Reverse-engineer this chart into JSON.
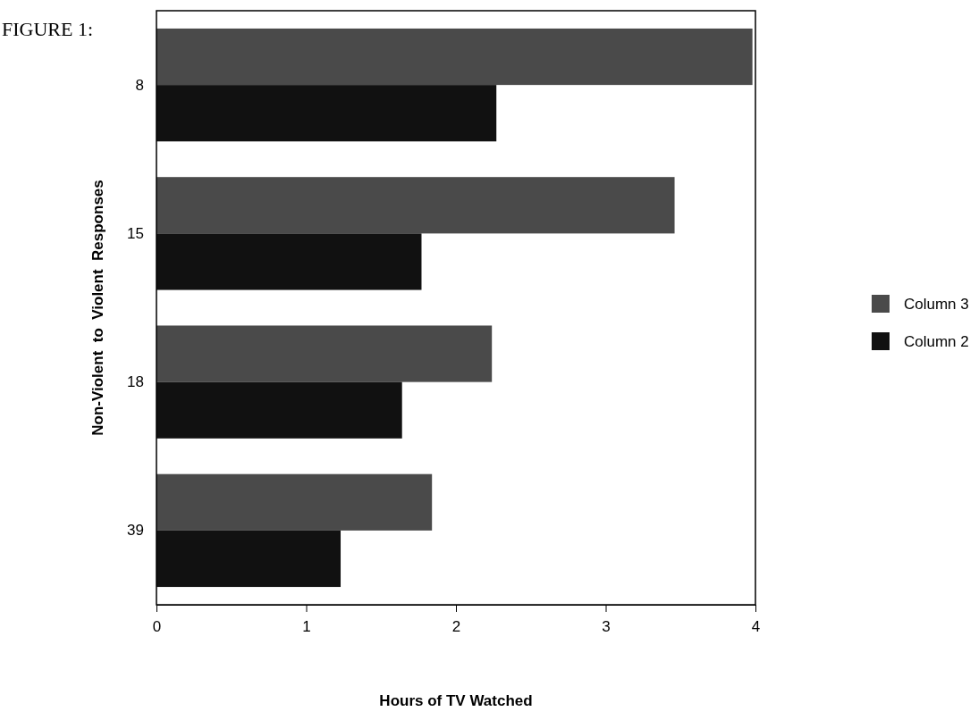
{
  "chart_data": {
    "type": "bar",
    "orientation": "horizontal",
    "title": "FIGURE 1:",
    "xlabel": "Hours of TV Watched",
    "ylabel": "Non-Violent  to  Violent  Responses",
    "categories": [
      "8",
      "15",
      "18",
      "39"
    ],
    "series": [
      {
        "name": "Column 3",
        "color": "#4a4a4a",
        "values": [
          3.98,
          3.46,
          2.24,
          1.84
        ]
      },
      {
        "name": "Column 2",
        "color": "#111111",
        "values": [
          2.27,
          1.77,
          1.64,
          1.23
        ]
      }
    ],
    "xlim": [
      0,
      4
    ],
    "xticks": [
      0,
      1,
      2,
      3,
      4
    ],
    "grid": false,
    "legend": "right"
  }
}
